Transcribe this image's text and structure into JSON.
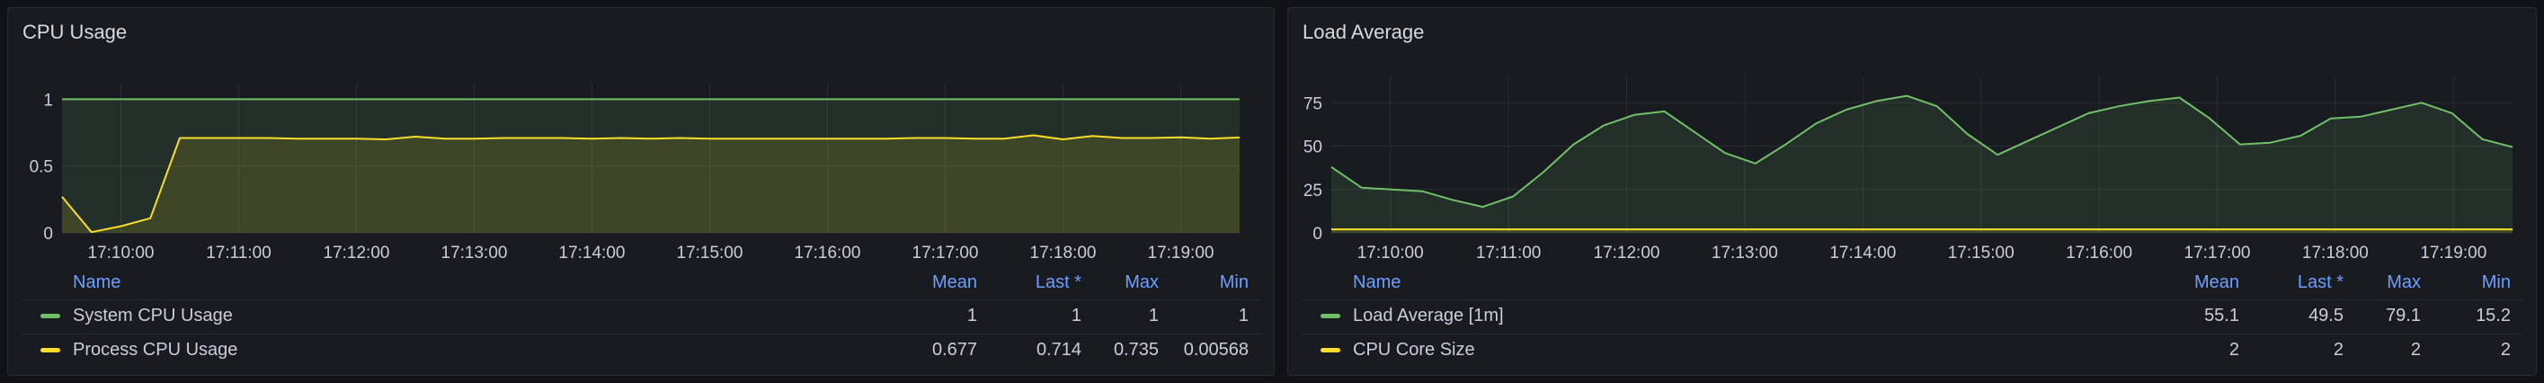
{
  "panels": [
    {
      "title": "CPU Usage",
      "legend": {
        "headers": {
          "name": "Name",
          "mean": "Mean",
          "last": "Last *",
          "max": "Max",
          "min": "Min"
        },
        "rows": [
          {
            "name": "System CPU Usage",
            "color": "#73bf69",
            "mean": "1",
            "last": "1",
            "max": "1",
            "min": "1"
          },
          {
            "name": "Process CPU Usage",
            "color": "#fade2a",
            "mean": "0.677",
            "last": "0.714",
            "max": "0.735",
            "min": "0.00568"
          }
        ]
      }
    },
    {
      "title": "Load Average",
      "legend": {
        "headers": {
          "name": "Name",
          "mean": "Mean",
          "last": "Last *",
          "max": "Max",
          "min": "Min"
        },
        "rows": [
          {
            "name": "Load Average [1m]",
            "color": "#73bf69",
            "mean": "55.1",
            "last": "49.5",
            "max": "79.1",
            "min": "15.2"
          },
          {
            "name": "CPU Core Size",
            "color": "#fade2a",
            "mean": "2",
            "last": "2",
            "max": "2",
            "min": "2"
          }
        ]
      }
    }
  ],
  "chart_data": [
    {
      "type": "area",
      "title": "CPU Usage",
      "x_start": "17:09:30",
      "x_end": "17:19:30",
      "x_ticks": [
        "17:10:00",
        "17:11:00",
        "17:12:00",
        "17:13:00",
        "17:14:00",
        "17:15:00",
        "17:16:00",
        "17:17:00",
        "17:18:00",
        "17:19:00"
      ],
      "y_ticks": [
        "0",
        "0.5",
        "1"
      ],
      "ylim": [
        0,
        1.05
      ],
      "series": [
        {
          "name": "System CPU Usage",
          "color": "#73bf69",
          "values": [
            1,
            1,
            1,
            1,
            1,
            1,
            1,
            1,
            1,
            1,
            1,
            1,
            1,
            1,
            1,
            1,
            1,
            1,
            1,
            1,
            1,
            1,
            1,
            1,
            1,
            1,
            1,
            1,
            1,
            1,
            1,
            1,
            1,
            1,
            1,
            1,
            1,
            1,
            1,
            1,
            1
          ]
        },
        {
          "name": "Process CPU Usage",
          "color": "#fade2a",
          "values": [
            0.27,
            0.0057,
            0.05,
            0.11,
            0.71,
            0.71,
            0.71,
            0.71,
            0.705,
            0.705,
            0.705,
            0.7,
            0.72,
            0.705,
            0.705,
            0.71,
            0.71,
            0.71,
            0.705,
            0.71,
            0.705,
            0.71,
            0.705,
            0.705,
            0.705,
            0.705,
            0.705,
            0.705,
            0.705,
            0.71,
            0.71,
            0.705,
            0.705,
            0.73,
            0.7,
            0.725,
            0.71,
            0.71,
            0.715,
            0.705,
            0.714
          ]
        }
      ]
    },
    {
      "type": "area",
      "title": "Load Average",
      "x_start": "17:09:30",
      "x_end": "17:19:30",
      "x_ticks": [
        "17:10:00",
        "17:11:00",
        "17:12:00",
        "17:13:00",
        "17:14:00",
        "17:15:00",
        "17:16:00",
        "17:17:00",
        "17:18:00",
        "17:19:00"
      ],
      "y_ticks": [
        "0",
        "25",
        "50",
        "75"
      ],
      "ylim": [
        0,
        85
      ],
      "series": [
        {
          "name": "Load Average [1m]",
          "color": "#73bf69",
          "values": [
            38,
            26,
            25,
            24,
            19,
            15,
            21,
            35,
            51,
            62,
            68,
            70,
            58,
            46,
            40,
            51,
            63,
            71,
            76,
            79,
            73,
            57,
            45,
            53,
            61,
            69,
            73,
            76,
            78,
            66,
            51,
            52,
            56,
            66,
            67,
            71,
            75,
            69,
            54,
            49.5
          ]
        },
        {
          "name": "CPU Core Size",
          "color": "#fade2a",
          "values": [
            2,
            2,
            2,
            2,
            2,
            2,
            2,
            2,
            2,
            2,
            2,
            2,
            2,
            2,
            2,
            2,
            2,
            2,
            2,
            2,
            2,
            2,
            2,
            2,
            2,
            2,
            2,
            2,
            2,
            2,
            2,
            2,
            2,
            2,
            2,
            2,
            2,
            2,
            2,
            2
          ]
        }
      ]
    }
  ]
}
